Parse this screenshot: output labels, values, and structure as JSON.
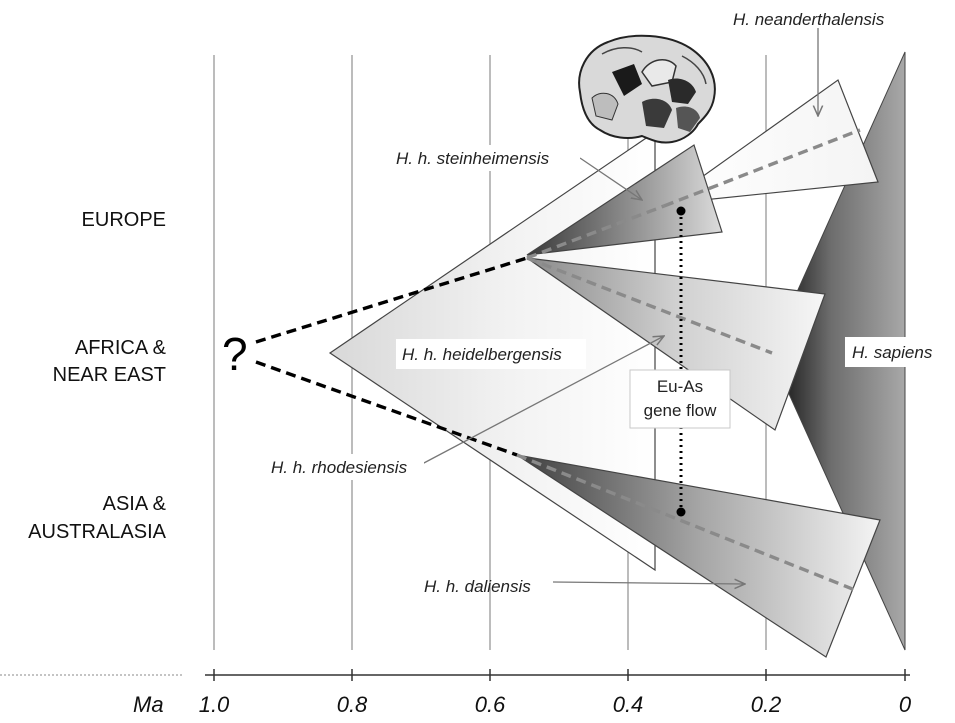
{
  "regions": {
    "europe": "EUROPE",
    "africa_line1": "AFRICA &",
    "africa_line2": "NEAR EAST",
    "asia_line1": "ASIA &",
    "asia_line2": "AUSTRALASIA"
  },
  "taxa": {
    "neanderthalensis": "H. neanderthalensis",
    "steinheimensis": "H. h. steinheimensis",
    "heidelbergensis": "H. h. heidelbergensis",
    "rhodesiensis": "H. h. rhodesiensis",
    "daliensis": "H. h. daliensis",
    "sapiens": "H. sapiens"
  },
  "gene_flow": {
    "line1": "Eu-As",
    "line2": "gene flow"
  },
  "question_mark": "?",
  "axis": {
    "unit_label": "Ma",
    "ticks": [
      "1.0",
      "0.8",
      "0.6",
      "0.4",
      "0.2",
      "0"
    ]
  },
  "colors": {
    "dashed_black": "#000000",
    "dashed_grey": "#8a8a8a",
    "grid": "#9a9a9a",
    "triangle_stroke": "#333333"
  },
  "skull_icon": "skull-image"
}
